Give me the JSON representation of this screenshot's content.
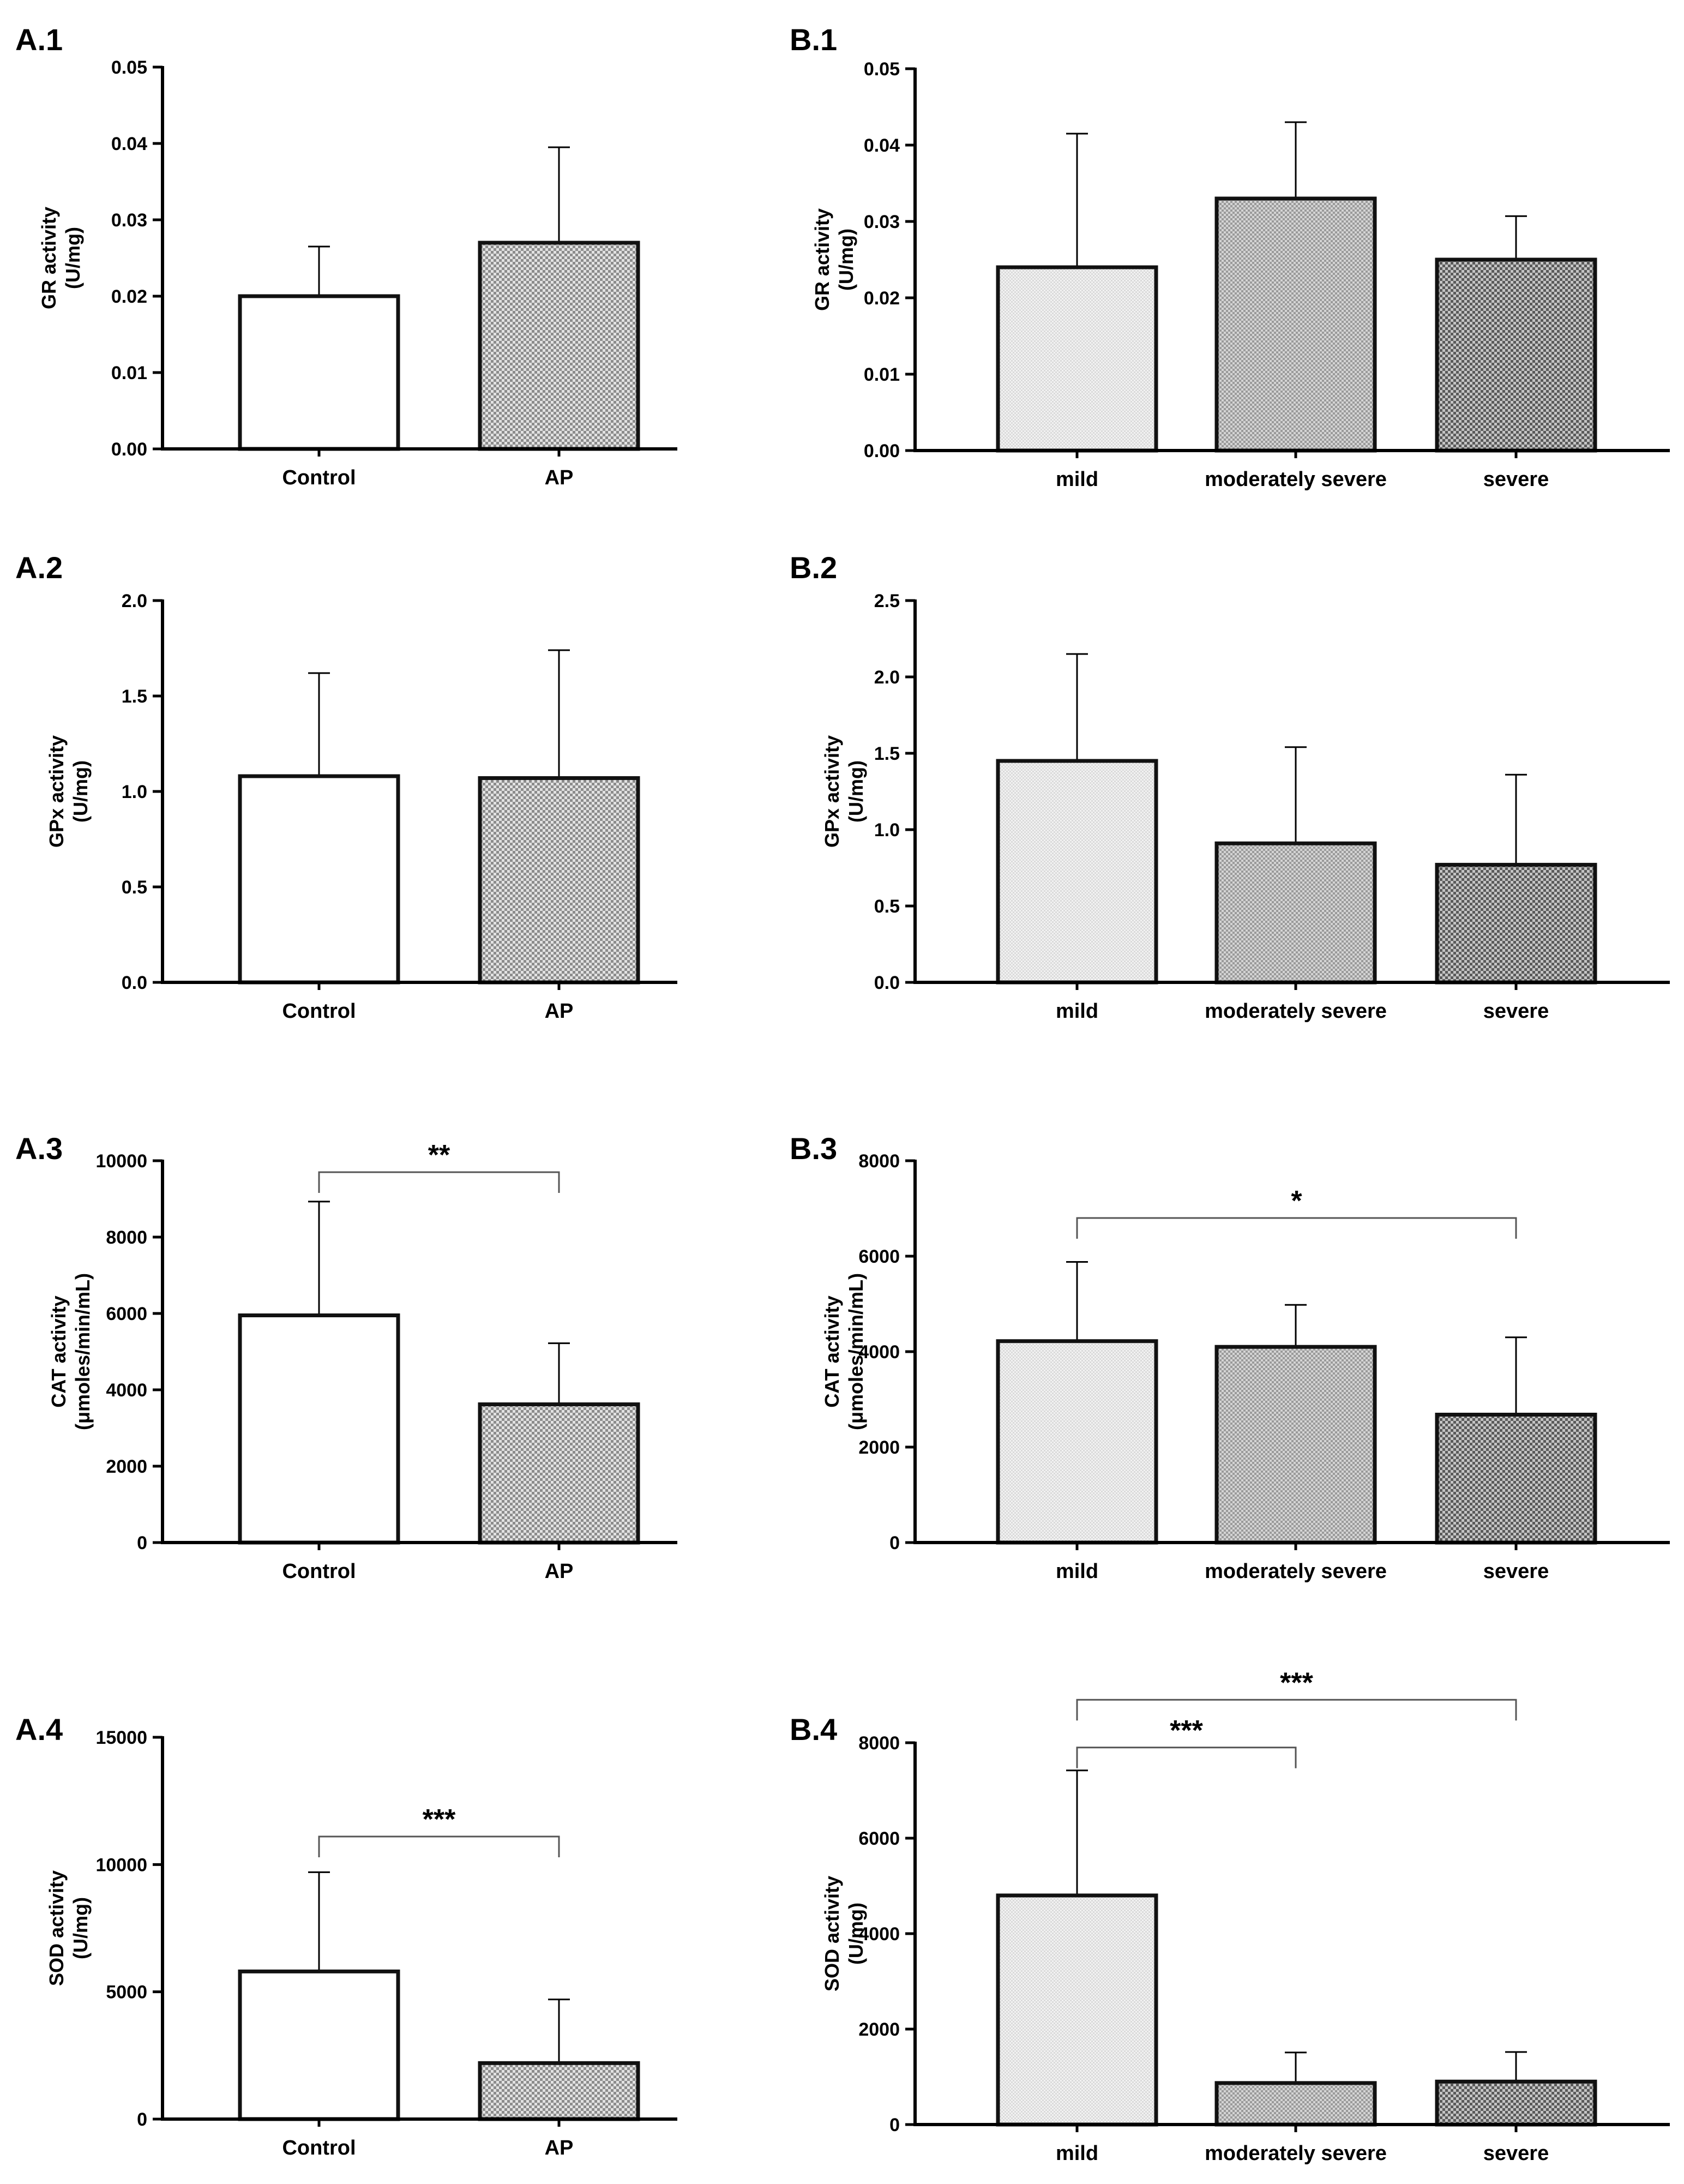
{
  "figure": {
    "colors": {
      "axis": "#000000",
      "bar_edge": "#111111",
      "fill_control": "#ffffff",
      "fill_mild": "#e9e9e9",
      "fill_moderate": "#bdbdbd",
      "fill_severe": "#8a8a8a",
      "fill_ap": "#a9a9a9"
    }
  },
  "chart_data": [
    {
      "id": "A.1",
      "panel_label": "A.1",
      "type": "bar",
      "ylabel_lines": [
        "GR activity",
        "(U/mg)"
      ],
      "categories": [
        "Control",
        "AP"
      ],
      "values": [
        0.02,
        0.027
      ],
      "errors": [
        0.0065,
        0.0125
      ],
      "ylim": [
        0,
        0.05
      ],
      "ticks": [
        0,
        0.01,
        0.02,
        0.03,
        0.04,
        0.05
      ],
      "tick_labels": [
        "0.00",
        "0.01",
        "0.02",
        "0.03",
        "0.04",
        "0.05"
      ],
      "fills": [
        "fill_control",
        "fill_ap"
      ],
      "significance": []
    },
    {
      "id": "B.1",
      "panel_label": "B.1",
      "type": "bar",
      "ylabel_lines": [
        "GR activity",
        "(U/mg)"
      ],
      "categories": [
        "mild",
        "moderately severe",
        "severe"
      ],
      "values": [
        0.024,
        0.033,
        0.025
      ],
      "errors": [
        0.0175,
        0.01,
        0.0057
      ],
      "ylim": [
        0,
        0.05
      ],
      "ticks": [
        0,
        0.01,
        0.02,
        0.03,
        0.04,
        0.05
      ],
      "tick_labels": [
        "0.00",
        "0.01",
        "0.02",
        "0.03",
        "0.04",
        "0.05"
      ],
      "fills": [
        "fill_mild",
        "fill_moderate",
        "fill_severe"
      ],
      "significance": []
    },
    {
      "id": "A.2",
      "panel_label": "A.2",
      "type": "bar",
      "ylabel_lines": [
        "GPx activity",
        "(U/mg)"
      ],
      "categories": [
        "Control",
        "AP"
      ],
      "values": [
        1.08,
        1.07
      ],
      "errors": [
        0.54,
        0.67
      ],
      "ylim": [
        0,
        2.0
      ],
      "ticks": [
        0,
        0.5,
        1.0,
        1.5,
        2.0
      ],
      "tick_labels": [
        "0.0",
        "0.5",
        "1.0",
        "1.5",
        "2.0"
      ],
      "fills": [
        "fill_control",
        "fill_ap"
      ],
      "significance": []
    },
    {
      "id": "B.2",
      "panel_label": "B.2",
      "type": "bar",
      "ylabel_lines": [
        "GPx activity",
        "(U/mg)"
      ],
      "categories": [
        "mild",
        "moderately severe",
        "severe"
      ],
      "values": [
        1.45,
        0.91,
        0.77
      ],
      "errors": [
        0.7,
        0.63,
        0.59
      ],
      "ylim": [
        0,
        2.5
      ],
      "ticks": [
        0,
        0.5,
        1.0,
        1.5,
        2.0,
        2.5
      ],
      "tick_labels": [
        "0.0",
        "0.5",
        "1.0",
        "1.5",
        "2.0",
        "2.5"
      ],
      "fills": [
        "fill_mild",
        "fill_moderate",
        "fill_severe"
      ],
      "significance": []
    },
    {
      "id": "A.3",
      "panel_label": "A.3",
      "type": "bar",
      "ylabel_lines": [
        "CAT activity",
        "(μmoles/min/mL)"
      ],
      "categories": [
        "Control",
        "AP"
      ],
      "values": [
        5950,
        3620
      ],
      "errors": [
        2980,
        1600
      ],
      "ylim": [
        0,
        10000
      ],
      "ticks": [
        0,
        2000,
        4000,
        6000,
        8000,
        10000
      ],
      "tick_labels": [
        "0",
        "2000",
        "4000",
        "6000",
        "8000",
        "10000"
      ],
      "fills": [
        "fill_control",
        "fill_ap"
      ],
      "significance": [
        {
          "from": 0,
          "to": 1,
          "label": "**",
          "level": 9700
        }
      ]
    },
    {
      "id": "B.3",
      "panel_label": "B.3",
      "type": "bar",
      "ylabel_lines": [
        "CAT activity",
        "(μmoles/min/mL)"
      ],
      "categories": [
        "mild",
        "moderately severe",
        "severe"
      ],
      "values": [
        4220,
        4100,
        2680
      ],
      "errors": [
        1660,
        880,
        1620
      ],
      "ylim": [
        0,
        8000
      ],
      "ticks": [
        0,
        2000,
        4000,
        6000,
        8000
      ],
      "tick_labels": [
        "0",
        "2000",
        "4000",
        "6000",
        "8000"
      ],
      "fills": [
        "fill_mild",
        "fill_moderate",
        "fill_severe"
      ],
      "significance": [
        {
          "from": 0,
          "to": 2,
          "label": "*",
          "level": 6800
        }
      ]
    },
    {
      "id": "A.4",
      "panel_label": "A.4",
      "type": "bar",
      "ylabel_lines": [
        "SOD activity",
        "(U/mg)"
      ],
      "categories": [
        "Control",
        "AP"
      ],
      "values": [
        5800,
        2200
      ],
      "errors": [
        3900,
        2500
      ],
      "ylim": [
        0,
        15000
      ],
      "ticks": [
        0,
        5000,
        10000,
        15000
      ],
      "tick_labels": [
        "0",
        "5000",
        "10000",
        "15000"
      ],
      "fills": [
        "fill_control",
        "fill_ap"
      ],
      "significance": [
        {
          "from": 0,
          "to": 1,
          "label": "***",
          "level": 11100
        }
      ]
    },
    {
      "id": "B.4",
      "panel_label": "B.4",
      "type": "bar",
      "ylabel_lines": [
        "SOD activity",
        "(U/mg)"
      ],
      "categories": [
        "mild",
        "moderately severe",
        "severe"
      ],
      "values": [
        4800,
        870,
        900
      ],
      "errors": [
        2620,
        640,
        620
      ],
      "ylim": [
        0,
        8000
      ],
      "ticks": [
        0,
        2000,
        4000,
        6000,
        8000
      ],
      "tick_labels": [
        "0",
        "2000",
        "4000",
        "6000",
        "8000"
      ],
      "fills": [
        "fill_mild",
        "fill_moderate",
        "fill_severe"
      ],
      "significance": [
        {
          "from": 0,
          "to": 1,
          "label": "***",
          "level": 7900
        },
        {
          "from": 0,
          "to": 2,
          "label": "***",
          "level": 8900
        }
      ]
    }
  ]
}
